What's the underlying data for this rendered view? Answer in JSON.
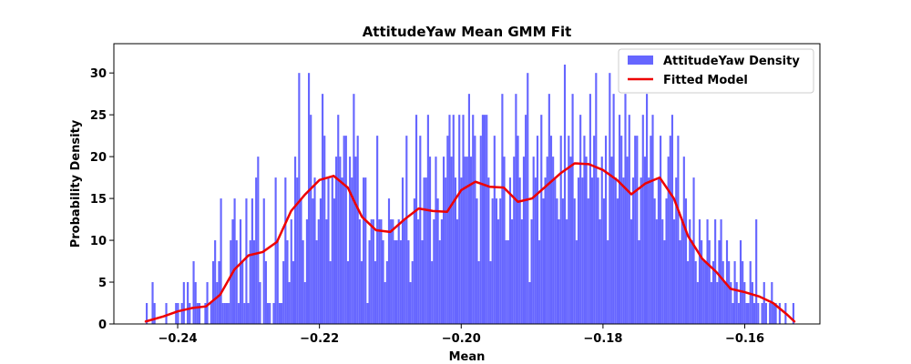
{
  "chart_data": {
    "type": "bar",
    "title": "AttitudeYaw Mean GMM Fit",
    "xlabel": "Mean",
    "ylabel": "Probability Density",
    "xlim": [
      -0.249,
      -0.1494
    ],
    "ylim": [
      0,
      33.5
    ],
    "xticks": [
      -0.24,
      -0.22,
      -0.2,
      -0.18,
      -0.16
    ],
    "xtick_labels": [
      "−0.24",
      "−0.22",
      "−0.20",
      "−0.18",
      "−0.16"
    ],
    "yticks": [
      0,
      5,
      10,
      15,
      20,
      25,
      30
    ],
    "ytick_labels": [
      "0",
      "5",
      "10",
      "15",
      "20",
      "25",
      "30"
    ],
    "grid": false,
    "legend_position": "top-right",
    "bin_range": [
      -0.2445,
      -0.153
    ],
    "bin_width": 0.000305,
    "series": [
      {
        "name": "AttitudeYaw Density",
        "kind": "histogram",
        "color": "#6666ff",
        "values": [
          2.5,
          0,
          0,
          5,
          2.5,
          0,
          0,
          0,
          0,
          0,
          2.5,
          0,
          0,
          0,
          0,
          2.5,
          2.5,
          0,
          2.5,
          5,
          0,
          5,
          2.5,
          0,
          7.5,
          5,
          2.5,
          2.5,
          0,
          0,
          2.5,
          5,
          0,
          2.5,
          7.5,
          10,
          5,
          7.5,
          15,
          2.5,
          2.5,
          2.5,
          2.5,
          10,
          12.5,
          15,
          10,
          2.5,
          12.5,
          7.5,
          2.5,
          15,
          2.5,
          10,
          15,
          10,
          17.5,
          20,
          5,
          0,
          15,
          7.5,
          2.5,
          2.5,
          0,
          2.5,
          17.5,
          10,
          2.5,
          2.5,
          7.5,
          17.5,
          10,
          5,
          12.5,
          7.5,
          20,
          17.5,
          30,
          15,
          10,
          5,
          12.5,
          30,
          25,
          15,
          17.5,
          10,
          12.5,
          15,
          27.5,
          22.5,
          12.5,
          17.5,
          7.5,
          17.5,
          15,
          20,
          25,
          20,
          17.5,
          22.5,
          22.5,
          7.5,
          20,
          17.5,
          27.5,
          20,
          22.5,
          12.5,
          7.5,
          17.5,
          17.5,
          2.5,
          10,
          12.5,
          12.5,
          7.5,
          22.5,
          12.5,
          12.5,
          10,
          5,
          7.5,
          15,
          12.5,
          12.5,
          10,
          10,
          12.5,
          10,
          17.5,
          12.5,
          22.5,
          10,
          5,
          7.5,
          15,
          25,
          12.5,
          22.5,
          10,
          17.5,
          17.5,
          25,
          20,
          7.5,
          12.5,
          20,
          15,
          10,
          12.5,
          20,
          17.5,
          22.5,
          25,
          20,
          25,
          17.5,
          12.5,
          25,
          17.5,
          25,
          20,
          20,
          27.5,
          20,
          25,
          22.5,
          15,
          7.5,
          22.5,
          25,
          25,
          25,
          17.5,
          7.5,
          15,
          22.5,
          15,
          12.5,
          15,
          27.5,
          20,
          10,
          10,
          17.5,
          12.5,
          20,
          27.5,
          22.5,
          17.5,
          12.5,
          20,
          25,
          30,
          5,
          12.5,
          20,
          17.5,
          22.5,
          10,
          25,
          15,
          17.5,
          20,
          27.5,
          22.5,
          20,
          17.5,
          15,
          12.5,
          22.5,
          15,
          31,
          12.5,
          22.5,
          20,
          27.5,
          15,
          10,
          17.5,
          25,
          17.5,
          22.5,
          20,
          15,
          27.5,
          17.5,
          22.5,
          30,
          17.5,
          12.5,
          20,
          15,
          22.5,
          10,
          30,
          20,
          27.5,
          17.5,
          15,
          25,
          22.5,
          17.5,
          27.5,
          20,
          25,
          12.5,
          17.5,
          22.5,
          22.5,
          10,
          17.5,
          25,
          20,
          27.5,
          17.5,
          22.5,
          25,
          15,
          12.5,
          17.5,
          22.5,
          12.5,
          10,
          15,
          20,
          22.5,
          25,
          12.5,
          17.5,
          22.5,
          10,
          12.5,
          20,
          15,
          7.5,
          12.5,
          10,
          17.5,
          7.5,
          5,
          12.5,
          10,
          7.5,
          7.5,
          12.5,
          10,
          5,
          7.5,
          12.5,
          5,
          10,
          12.5,
          7.5,
          5,
          10,
          7.5,
          5,
          2.5,
          7.5,
          5,
          2.5,
          10,
          7.5,
          5,
          2.5,
          2.5,
          7.5,
          5,
          2.5,
          12.5,
          2.5,
          0,
          2.5,
          5,
          2.5,
          0,
          2.5,
          5,
          2.5,
          2.5,
          0,
          2.5,
          0,
          0,
          2.5,
          0,
          0,
          0,
          2.5
        ]
      },
      {
        "name": "Fitted Model",
        "kind": "line",
        "color": "#ee0000",
        "x": [
          -0.2445,
          -0.242,
          -0.24,
          -0.238,
          -0.236,
          -0.234,
          -0.232,
          -0.23,
          -0.228,
          -0.226,
          -0.224,
          -0.222,
          -0.22,
          -0.218,
          -0.216,
          -0.215,
          -0.214,
          -0.212,
          -0.21,
          -0.208,
          -0.206,
          -0.204,
          -0.202,
          -0.2,
          -0.198,
          -0.196,
          -0.194,
          -0.192,
          -0.19,
          -0.188,
          -0.186,
          -0.184,
          -0.182,
          -0.18,
          -0.178,
          -0.176,
          -0.174,
          -0.172,
          -0.17,
          -0.168,
          -0.166,
          -0.164,
          -0.162,
          -0.16,
          -0.158,
          -0.156,
          -0.154,
          -0.153
        ],
        "y": [
          0.3,
          0.9,
          1.5,
          1.9,
          2.1,
          3.5,
          6.5,
          8.2,
          8.6,
          9.8,
          13.5,
          15.5,
          17.2,
          17.7,
          16.3,
          14.5,
          12.8,
          11.2,
          11.0,
          12.5,
          13.8,
          13.5,
          13.4,
          16.0,
          17.0,
          16.4,
          16.3,
          14.6,
          15.0,
          16.5,
          18.0,
          19.2,
          19.1,
          18.4,
          17.2,
          15.5,
          16.8,
          17.5,
          15.0,
          10.5,
          7.8,
          6.2,
          4.2,
          3.8,
          3.3,
          2.5,
          1.1,
          0.3
        ]
      }
    ]
  }
}
